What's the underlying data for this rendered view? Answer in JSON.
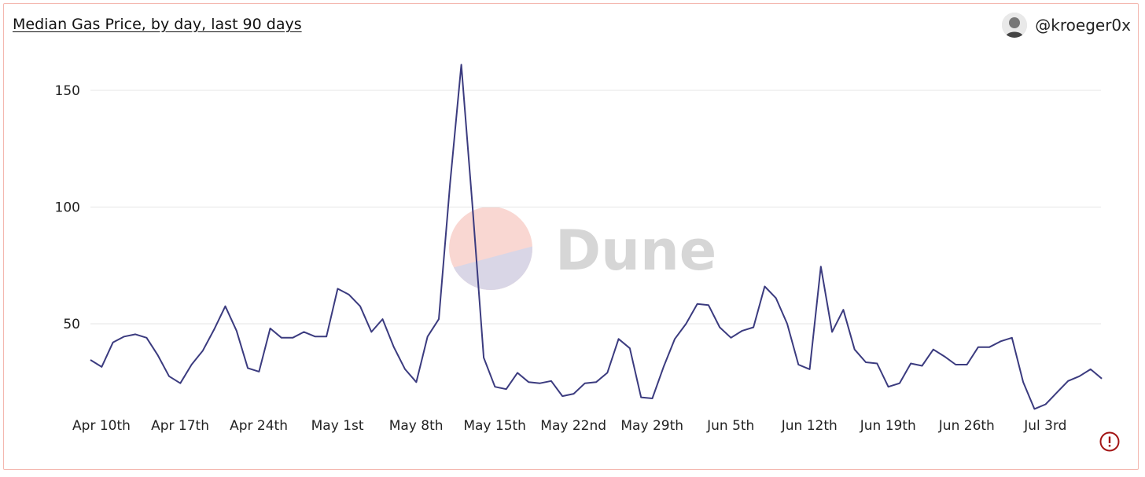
{
  "header": {
    "title": "Median Gas Price, by day, last 90 days",
    "author": "@kroeger0x"
  },
  "watermark": {
    "text": "Dune",
    "colors": {
      "top": "#f9d7d2",
      "bottom": "#d9d6e6"
    }
  },
  "colors": {
    "line": "#3b3b7f",
    "grid": "#e6e6e6",
    "frame": "#f4b8b0",
    "warning": "#a31515"
  },
  "chart_data": {
    "type": "line",
    "title": "Median Gas Price, by day, last 90 days",
    "xlabel": "",
    "ylabel": "",
    "x_start": "Apr 10th",
    "ylim": [
      8,
      165
    ],
    "yticks": [
      50,
      100,
      150
    ],
    "grid": true,
    "xticks": [
      {
        "label": "Apr 10th",
        "day": 0
      },
      {
        "label": "Apr 17th",
        "day": 7
      },
      {
        "label": "Apr 24th",
        "day": 14
      },
      {
        "label": "May 1st",
        "day": 21
      },
      {
        "label": "May 8th",
        "day": 28
      },
      {
        "label": "May 15th",
        "day": 35
      },
      {
        "label": "May 22nd",
        "day": 42
      },
      {
        "label": "May 29th",
        "day": 49
      },
      {
        "label": "Jun 5th",
        "day": 56
      },
      {
        "label": "Jun 12th",
        "day": 63
      },
      {
        "label": "Jun 19th",
        "day": 70
      },
      {
        "label": "Jun 26th",
        "day": 77
      },
      {
        "label": "Jul 3rd",
        "day": 84
      }
    ],
    "series": [
      {
        "name": "",
        "values": [
          34.5,
          31.5,
          42,
          44.5,
          45.5,
          44,
          36.5,
          27.5,
          24.5,
          32.5,
          38.5,
          47.5,
          57.5,
          47,
          31,
          29.5,
          48,
          44,
          44,
          46.5,
          44.5,
          44.5,
          65,
          62.5,
          57.5,
          46.5,
          52,
          40,
          30.5,
          25,
          44.5,
          52,
          110,
          161,
          100,
          35.5,
          23,
          22,
          29,
          25,
          24.5,
          25.5,
          19,
          20,
          24.5,
          25,
          29,
          43.5,
          39.5,
          18.5,
          18,
          31.5,
          43.5,
          50,
          58.5,
          58,
          48.5,
          44,
          47,
          48.5,
          66,
          61,
          50,
          32.5,
          30.5,
          74.5,
          46.5,
          56,
          39,
          33.5,
          33,
          23,
          24.5,
          33,
          32,
          39,
          36,
          32.5,
          32.5,
          40,
          40,
          42.5,
          44,
          25,
          13.5,
          15.5,
          20.5,
          25.5,
          27.5,
          30.5,
          26.5
        ]
      }
    ]
  }
}
